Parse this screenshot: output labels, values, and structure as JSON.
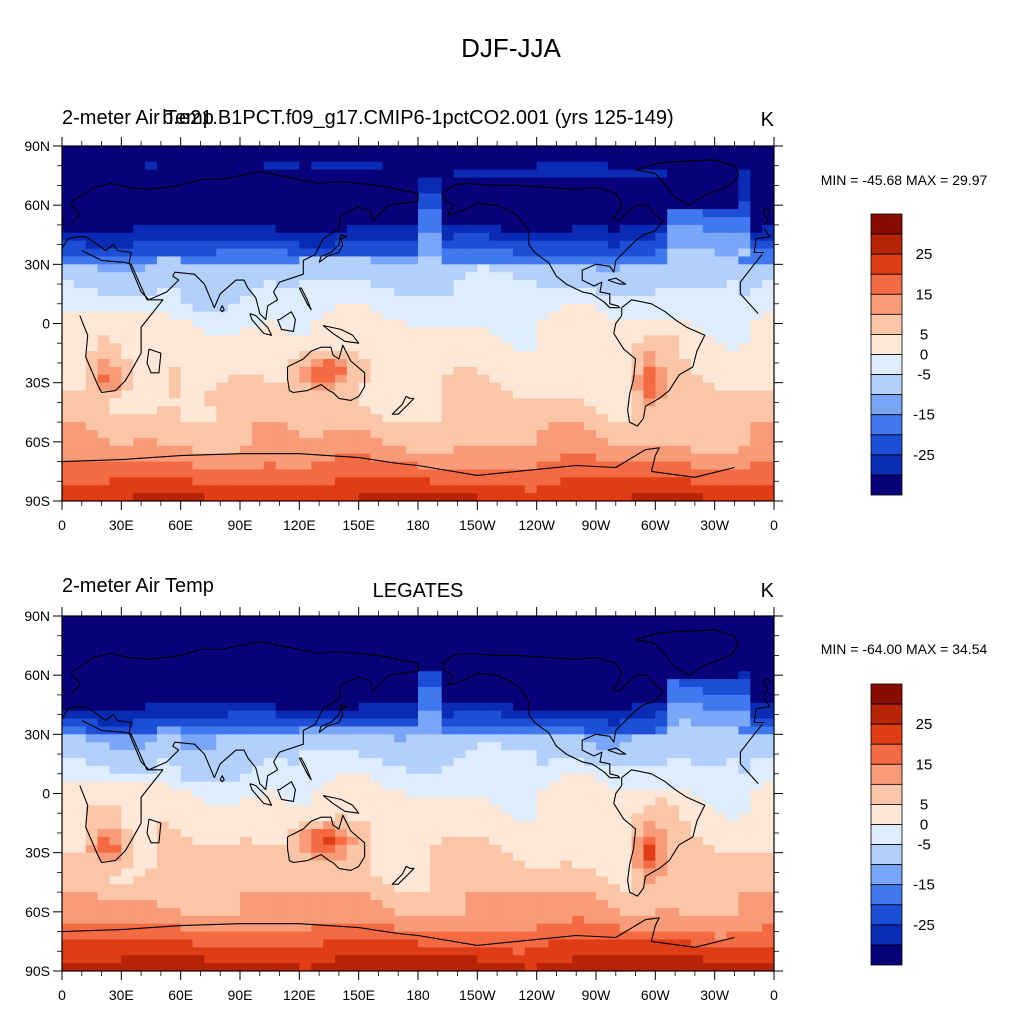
{
  "figure": {
    "title": "DJF-JJA"
  },
  "colors": {
    "levels": [
      "#08027a",
      "#0a2bb4",
      "#1d4fd6",
      "#3f78ef",
      "#7aa6fa",
      "#b3cffb",
      "#ddedfd",
      "#fde8d8",
      "#fbc6a8",
      "#f89b78",
      "#f36a43",
      "#e03d16",
      "#b72305",
      "#8a0c00"
    ],
    "frame": "#000000"
  },
  "chart_data": [
    {
      "type": "heatmap",
      "subtitle_left": "2-meter Air Temp",
      "subtitle_center": "b.e21.B1PCT.f09_g17.CMIP6-1pctCO2.001 (yrs 125-149)",
      "subtitle_right": "K",
      "min": -45.68,
      "max": 29.97,
      "minmax_text": "MIN = -45.68 MAX =  29.97",
      "xticks": [
        "0",
        "30E",
        "60E",
        "90E",
        "120E",
        "150E",
        "180",
        "150W",
        "120W",
        "90W",
        "60W",
        "30W",
        "0"
      ],
      "yticks": [
        "90N",
        "60N",
        "30N",
        "0",
        "30S",
        "60S",
        "90S"
      ],
      "colorbar_labels": [
        "25",
        "15",
        "5",
        "0",
        "-5",
        "-15",
        "-25"
      ],
      "lat_range": [
        -90,
        90
      ],
      "lon_range": [
        0,
        360
      ]
    },
    {
      "type": "heatmap",
      "subtitle_left": "2-meter Air Temp",
      "subtitle_center": "LEGATES",
      "subtitle_right": "K",
      "min": -64.0,
      "max": 34.54,
      "minmax_text": "MIN = -64.00 MAX =  34.54",
      "xticks": [
        "0",
        "30E",
        "60E",
        "90E",
        "120E",
        "150E",
        "180",
        "150W",
        "120W",
        "90W",
        "60W",
        "30W",
        "0"
      ],
      "yticks": [
        "90N",
        "60N",
        "30N",
        "0",
        "30S",
        "60S",
        "90S"
      ],
      "colorbar_labels": [
        "25",
        "15",
        "5",
        "0",
        "-5",
        "-15",
        "-25"
      ],
      "lat_range": [
        -90,
        90
      ],
      "lon_range": [
        0,
        360
      ]
    }
  ]
}
